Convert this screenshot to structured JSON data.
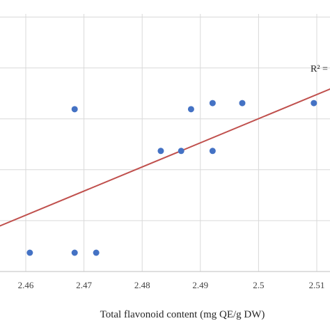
{
  "chart_data": {
    "type": "scatter",
    "title": "",
    "xlabel": "Total flavonoid content (mg QE/g DW)",
    "ylabel": "",
    "xlim": [
      2.455,
      2.513
    ],
    "xticks": [
      2.46,
      2.47,
      2.48,
      2.49,
      2.5,
      2.51
    ],
    "xtick_labels": [
      "2.46",
      "2.47",
      "2.48",
      "2.49",
      "2.5",
      "2.51"
    ],
    "y_gridlines": [
      0,
      1,
      2,
      3,
      4,
      5
    ],
    "ylim": [
      0,
      5.2
    ],
    "grid": true,
    "series": [
      {
        "color": "#4472c4",
        "x": [
          2.4607,
          2.4684,
          2.4721,
          2.4684,
          2.4832,
          2.4867,
          2.4884,
          2.4921,
          2.4921,
          2.4972,
          2.5095
        ],
        "y": [
          0,
          0,
          0,
          2.82,
          2.0,
          2.0,
          2.82,
          2.0,
          2.94,
          2.94,
          2.94
        ]
      }
    ],
    "trendline": {
      "color": "#c0504d",
      "x": [
        2.455,
        2.513
      ],
      "y": [
        0.5,
        3.25
      ]
    },
    "annotation": "R² ="
  }
}
